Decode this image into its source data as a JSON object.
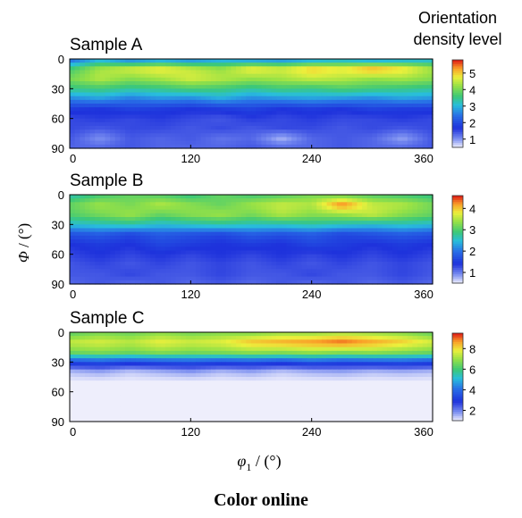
{
  "legend_title": [
    "Orientation",
    "density level"
  ],
  "axes": {
    "ylabel_symbol": "Φ",
    "ylabel_unit": " / (°)",
    "xlabel_symbol": "φ",
    "xlabel_subscript": "1",
    "xlabel_unit": " / (°)"
  },
  "footer": "Color online",
  "chart_data": [
    {
      "type": "heatmap",
      "title": "Sample A",
      "x_ticks": [
        "0",
        "120",
        "240",
        "360"
      ],
      "y_ticks": [
        "0",
        "30",
        "60",
        "90"
      ],
      "xlim": [
        0,
        360
      ],
      "ylim": [
        0,
        90
      ],
      "colorbar_ticks": [
        "1",
        "2",
        "3",
        "4",
        "5"
      ],
      "colorbar_range": [
        0.5,
        5.8
      ],
      "x": [
        0,
        30,
        60,
        90,
        120,
        150,
        180,
        210,
        240,
        270,
        300,
        330,
        360
      ],
      "y": [
        0,
        10,
        20,
        30,
        40,
        50,
        60,
        70,
        80,
        90
      ],
      "z": [
        [
          2.2,
          2.8,
          2.3,
          2.6,
          2.4,
          2.7,
          2.5,
          2.4,
          2.6,
          2.8,
          2.5,
          2.7,
          2.9
        ],
        [
          3.6,
          4.3,
          4.6,
          4.8,
          4.5,
          4.2,
          4.8,
          4.6,
          5.0,
          4.8,
          5.2,
          4.9,
          4.3
        ],
        [
          4.0,
          4.4,
          4.1,
          4.3,
          4.6,
          4.4,
          4.2,
          4.3,
          4.5,
          4.4,
          4.2,
          4.3,
          4.1
        ],
        [
          3.5,
          3.6,
          3.4,
          3.5,
          3.7,
          3.6,
          3.4,
          3.6,
          3.5,
          3.7,
          3.6,
          3.5,
          3.4
        ],
        [
          2.6,
          2.8,
          2.5,
          2.7,
          2.6,
          2.9,
          2.6,
          2.7,
          2.8,
          2.7,
          2.6,
          2.8,
          2.7
        ],
        [
          1.8,
          1.7,
          1.9,
          1.8,
          1.7,
          1.8,
          1.9,
          1.7,
          1.8,
          1.7,
          1.9,
          1.8,
          1.8
        ],
        [
          1.5,
          1.6,
          1.5,
          1.6,
          1.5,
          1.4,
          1.6,
          1.5,
          1.6,
          1.5,
          1.5,
          1.6,
          1.5
        ],
        [
          1.5,
          1.4,
          1.5,
          1.5,
          1.4,
          1.5,
          1.4,
          1.5,
          1.5,
          1.4,
          1.5,
          1.4,
          1.5
        ],
        [
          1.4,
          1.0,
          1.4,
          1.3,
          1.4,
          1.2,
          1.3,
          0.8,
          1.3,
          1.4,
          1.3,
          0.9,
          1.4
        ],
        [
          1.3,
          1.3,
          1.4,
          1.3,
          1.3,
          1.3,
          1.4,
          1.3,
          1.3,
          1.4,
          1.3,
          1.3,
          1.4
        ]
      ]
    },
    {
      "type": "heatmap",
      "title": "Sample B",
      "x_ticks": [
        "0",
        "120",
        "240",
        "360"
      ],
      "y_ticks": [
        "0",
        "30",
        "60",
        "90"
      ],
      "xlim": [
        0,
        360
      ],
      "ylim": [
        0,
        90
      ],
      "colorbar_ticks": [
        "1",
        "2",
        "3",
        "4"
      ],
      "colorbar_range": [
        0.5,
        4.6
      ],
      "x": [
        0,
        30,
        60,
        90,
        120,
        150,
        180,
        210,
        240,
        270,
        300,
        330,
        360
      ],
      "y": [
        0,
        10,
        20,
        30,
        40,
        50,
        60,
        70,
        80,
        90
      ],
      "z": [
        [
          2.6,
          2.9,
          3.1,
          3.0,
          2.8,
          3.1,
          2.9,
          3.0,
          3.2,
          3.1,
          3.0,
          2.9,
          2.8
        ],
        [
          3.1,
          3.4,
          3.2,
          3.5,
          3.3,
          3.1,
          3.4,
          3.6,
          3.5,
          4.3,
          3.6,
          3.5,
          3.2
        ],
        [
          3.0,
          3.2,
          3.4,
          3.1,
          3.3,
          3.4,
          3.2,
          3.5,
          3.3,
          3.4,
          3.6,
          3.3,
          3.1
        ],
        [
          2.5,
          2.6,
          2.7,
          2.5,
          2.6,
          2.7,
          2.6,
          2.6,
          2.7,
          2.6,
          2.5,
          2.6,
          2.5
        ],
        [
          1.7,
          1.8,
          1.6,
          1.8,
          1.7,
          1.6,
          1.8,
          1.7,
          1.8,
          1.6,
          1.7,
          1.8,
          1.7
        ],
        [
          1.4,
          1.5,
          1.4,
          1.6,
          1.5,
          1.4,
          1.5,
          1.4,
          1.6,
          1.5,
          1.4,
          1.5,
          1.4
        ],
        [
          1.3,
          1.4,
          1.3,
          1.4,
          1.3,
          1.4,
          1.3,
          1.4,
          1.3,
          1.4,
          1.3,
          1.4,
          1.3
        ],
        [
          1.2,
          1.3,
          1.2,
          1.3,
          1.2,
          1.3,
          1.2,
          1.3,
          1.2,
          1.3,
          1.2,
          1.3,
          1.2
        ],
        [
          1.2,
          1.2,
          1.3,
          1.2,
          1.2,
          1.3,
          1.2,
          1.2,
          1.3,
          1.2,
          1.2,
          1.3,
          1.2
        ],
        [
          1.1,
          1.2,
          1.1,
          1.2,
          1.1,
          1.2,
          1.1,
          1.2,
          1.1,
          1.2,
          1.1,
          1.2,
          1.1
        ]
      ]
    },
    {
      "type": "heatmap",
      "title": "Sample C",
      "x_ticks": [
        "0",
        "120",
        "240",
        "360"
      ],
      "y_ticks": [
        "0",
        "30",
        "60",
        "90"
      ],
      "xlim": [
        0,
        360
      ],
      "ylim": [
        0,
        90
      ],
      "colorbar_ticks": [
        "2",
        "4",
        "6",
        "8"
      ],
      "colorbar_range": [
        1,
        9.5
      ],
      "x": [
        0,
        30,
        60,
        90,
        120,
        150,
        180,
        210,
        240,
        270,
        300,
        330,
        360
      ],
      "y": [
        0,
        10,
        20,
        30,
        40,
        50,
        60,
        70,
        80,
        90
      ],
      "z": [
        [
          6.2,
          6.6,
          6.4,
          6.8,
          6.5,
          6.7,
          6.6,
          6.9,
          6.8,
          7.0,
          6.9,
          6.7,
          6.3
        ],
        [
          7.4,
          7.6,
          7.3,
          7.8,
          7.5,
          7.7,
          8.3,
          8.5,
          8.7,
          9.0,
          8.6,
          8.2,
          7.6
        ],
        [
          6.6,
          6.8,
          6.6,
          6.9,
          6.7,
          6.8,
          7.0,
          6.9,
          7.1,
          6.9,
          7.0,
          6.8,
          6.6
        ],
        [
          3.4,
          3.6,
          3.3,
          3.5,
          3.6,
          3.4,
          3.5,
          3.3,
          3.6,
          3.4,
          3.5,
          3.6,
          3.4
        ],
        [
          1.4,
          1.6,
          1.3,
          1.5,
          1.7,
          1.4,
          1.6,
          1.3,
          1.5,
          1.6,
          1.4,
          1.5,
          1.4
        ],
        [
          1.0,
          1.0,
          1.0,
          1.0,
          1.0,
          1.0,
          1.0,
          1.0,
          1.0,
          1.0,
          1.0,
          1.0,
          1.0
        ],
        [
          1.0,
          1.0,
          1.0,
          1.0,
          1.0,
          1.0,
          1.0,
          1.0,
          1.0,
          1.0,
          1.0,
          1.0,
          1.0
        ],
        [
          1.0,
          1.0,
          1.0,
          1.0,
          1.0,
          1.0,
          1.0,
          1.0,
          1.0,
          1.0,
          1.0,
          1.0,
          1.0
        ],
        [
          1.0,
          1.0,
          1.0,
          1.0,
          1.0,
          1.0,
          1.0,
          1.0,
          1.0,
          1.0,
          1.0,
          1.0,
          1.0
        ],
        [
          1.0,
          1.0,
          1.0,
          1.0,
          1.0,
          1.0,
          1.0,
          1.0,
          1.0,
          1.0,
          1.0,
          1.0,
          1.0
        ]
      ]
    }
  ]
}
